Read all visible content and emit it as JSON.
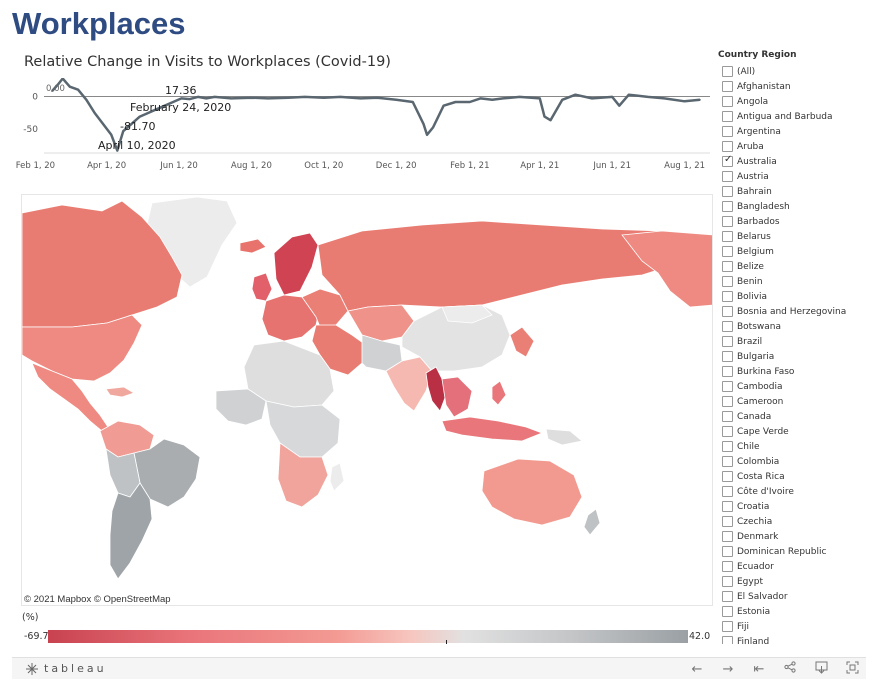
{
  "header": {
    "title": "Workplaces"
  },
  "chart": {
    "title": "Relative Change in Visits to Workplaces (Covid-19)",
    "label_start": "0.00",
    "label_max_value": "17.36",
    "label_max_date": "February 24, 2020",
    "label_min_value": "-81.70",
    "label_min_date": "April 10, 2020"
  },
  "chart_data": {
    "type": "line",
    "title": "Relative Change in Visits to Workplaces (Covid-19)",
    "xlabel": "",
    "ylabel": "",
    "x_ticks": [
      "Feb 1, 20",
      "Apr 1, 20",
      "Jun 1, 20",
      "Aug 1, 20",
      "Oct 1, 20",
      "Dec 1, 20",
      "Feb 1, 21",
      "Apr 1, 21",
      "Jun 1, 21",
      "Aug 1, 21"
    ],
    "y_ticks": [
      "0",
      "-50"
    ],
    "xlim": [
      "2020-02-15",
      "2021-08-14"
    ],
    "ylim": [
      -85,
      18
    ],
    "grid": false,
    "color": "#5a6770",
    "series": [
      {
        "x": [
          "2020-02-15",
          "2020-02-20",
          "2020-02-24",
          "2020-03-01",
          "2020-03-08",
          "2020-03-15",
          "2020-03-22",
          "2020-03-29",
          "2020-04-05",
          "2020-04-10",
          "2020-04-15",
          "2020-04-22",
          "2020-04-29",
          "2020-05-06",
          "2020-05-13",
          "2020-05-20",
          "2020-05-27",
          "2020-06-03",
          "2020-06-10",
          "2020-06-17",
          "2020-06-24",
          "2020-07-01",
          "2020-07-15",
          "2020-08-01",
          "2020-08-15",
          "2020-09-01",
          "2020-09-15",
          "2020-10-01",
          "2020-10-15",
          "2020-11-01",
          "2020-11-15",
          "2020-12-01",
          "2020-12-15",
          "2020-12-24",
          "2020-12-27",
          "2021-01-01",
          "2021-01-10",
          "2021-01-20",
          "2021-02-01",
          "2021-02-10",
          "2021-02-20",
          "2021-03-01",
          "2021-03-15",
          "2021-04-01",
          "2021-04-05",
          "2021-04-10",
          "2021-04-20",
          "2021-05-01",
          "2021-05-15",
          "2021-06-01",
          "2021-06-07",
          "2021-06-15",
          "2021-07-01",
          "2021-07-15",
          "2021-08-01",
          "2021-08-14"
        ],
        "values": [
          0,
          9,
          17.36,
          6,
          2,
          -12,
          -30,
          -45,
          -60,
          -81.7,
          -55,
          -45,
          -35,
          -30,
          -25,
          -20,
          -15,
          -10,
          -11,
          -8,
          -10,
          -8,
          -10,
          -9,
          -10,
          -9,
          -8,
          -9,
          -8,
          -10,
          -9,
          -12,
          -15,
          -45,
          -60,
          -50,
          -20,
          -15,
          -15,
          -10,
          -12,
          -10,
          -8,
          -10,
          -35,
          -40,
          -12,
          -5,
          -10,
          -8,
          -20,
          -5,
          -8,
          -10,
          -14,
          -12
        ]
      }
    ]
  },
  "map": {
    "attribution": "© 2021 Mapbox © OpenStreetMap",
    "legend_unit": "(%)",
    "legend_min": "-69.7",
    "legend_max": "42.0",
    "scale_colors": [
      "#c8424f",
      "#e9747a",
      "#f39a93",
      "#f6c7c0",
      "#e1e1e1",
      "#c3c5c7",
      "#9aa0a4"
    ]
  },
  "filter": {
    "title": "Country Region",
    "items": [
      {
        "label": "(All)",
        "checked": false
      },
      {
        "label": "Afghanistan",
        "checked": false
      },
      {
        "label": "Angola",
        "checked": false
      },
      {
        "label": "Antigua and Barbuda",
        "checked": false
      },
      {
        "label": "Argentina",
        "checked": false
      },
      {
        "label": "Aruba",
        "checked": false
      },
      {
        "label": "Australia",
        "checked": true
      },
      {
        "label": "Austria",
        "checked": false
      },
      {
        "label": "Bahrain",
        "checked": false
      },
      {
        "label": "Bangladesh",
        "checked": false
      },
      {
        "label": "Barbados",
        "checked": false
      },
      {
        "label": "Belarus",
        "checked": false
      },
      {
        "label": "Belgium",
        "checked": false
      },
      {
        "label": "Belize",
        "checked": false
      },
      {
        "label": "Benin",
        "checked": false
      },
      {
        "label": "Bolivia",
        "checked": false
      },
      {
        "label": "Bosnia and Herzegovina",
        "checked": false
      },
      {
        "label": "Botswana",
        "checked": false
      },
      {
        "label": "Brazil",
        "checked": false
      },
      {
        "label": "Bulgaria",
        "checked": false
      },
      {
        "label": "Burkina Faso",
        "checked": false
      },
      {
        "label": "Cambodia",
        "checked": false
      },
      {
        "label": "Cameroon",
        "checked": false
      },
      {
        "label": "Canada",
        "checked": false
      },
      {
        "label": "Cape Verde",
        "checked": false
      },
      {
        "label": "Chile",
        "checked": false
      },
      {
        "label": "Colombia",
        "checked": false
      },
      {
        "label": "Costa Rica",
        "checked": false
      },
      {
        "label": "Côte d'Ivoire",
        "checked": false
      },
      {
        "label": "Croatia",
        "checked": false
      },
      {
        "label": "Czechia",
        "checked": false
      },
      {
        "label": "Denmark",
        "checked": false
      },
      {
        "label": "Dominican Republic",
        "checked": false
      },
      {
        "label": "Ecuador",
        "checked": false
      },
      {
        "label": "Egypt",
        "checked": false
      },
      {
        "label": "El Salvador",
        "checked": false
      },
      {
        "label": "Estonia",
        "checked": false
      },
      {
        "label": "Fiji",
        "checked": false
      },
      {
        "label": "Finland",
        "checked": false
      }
    ]
  },
  "toolbar": {
    "logo_text": "tableau",
    "icons": [
      "undo-icon",
      "redo-icon",
      "revert-icon",
      "share-icon",
      "download-icon",
      "fullscreen-icon"
    ]
  }
}
